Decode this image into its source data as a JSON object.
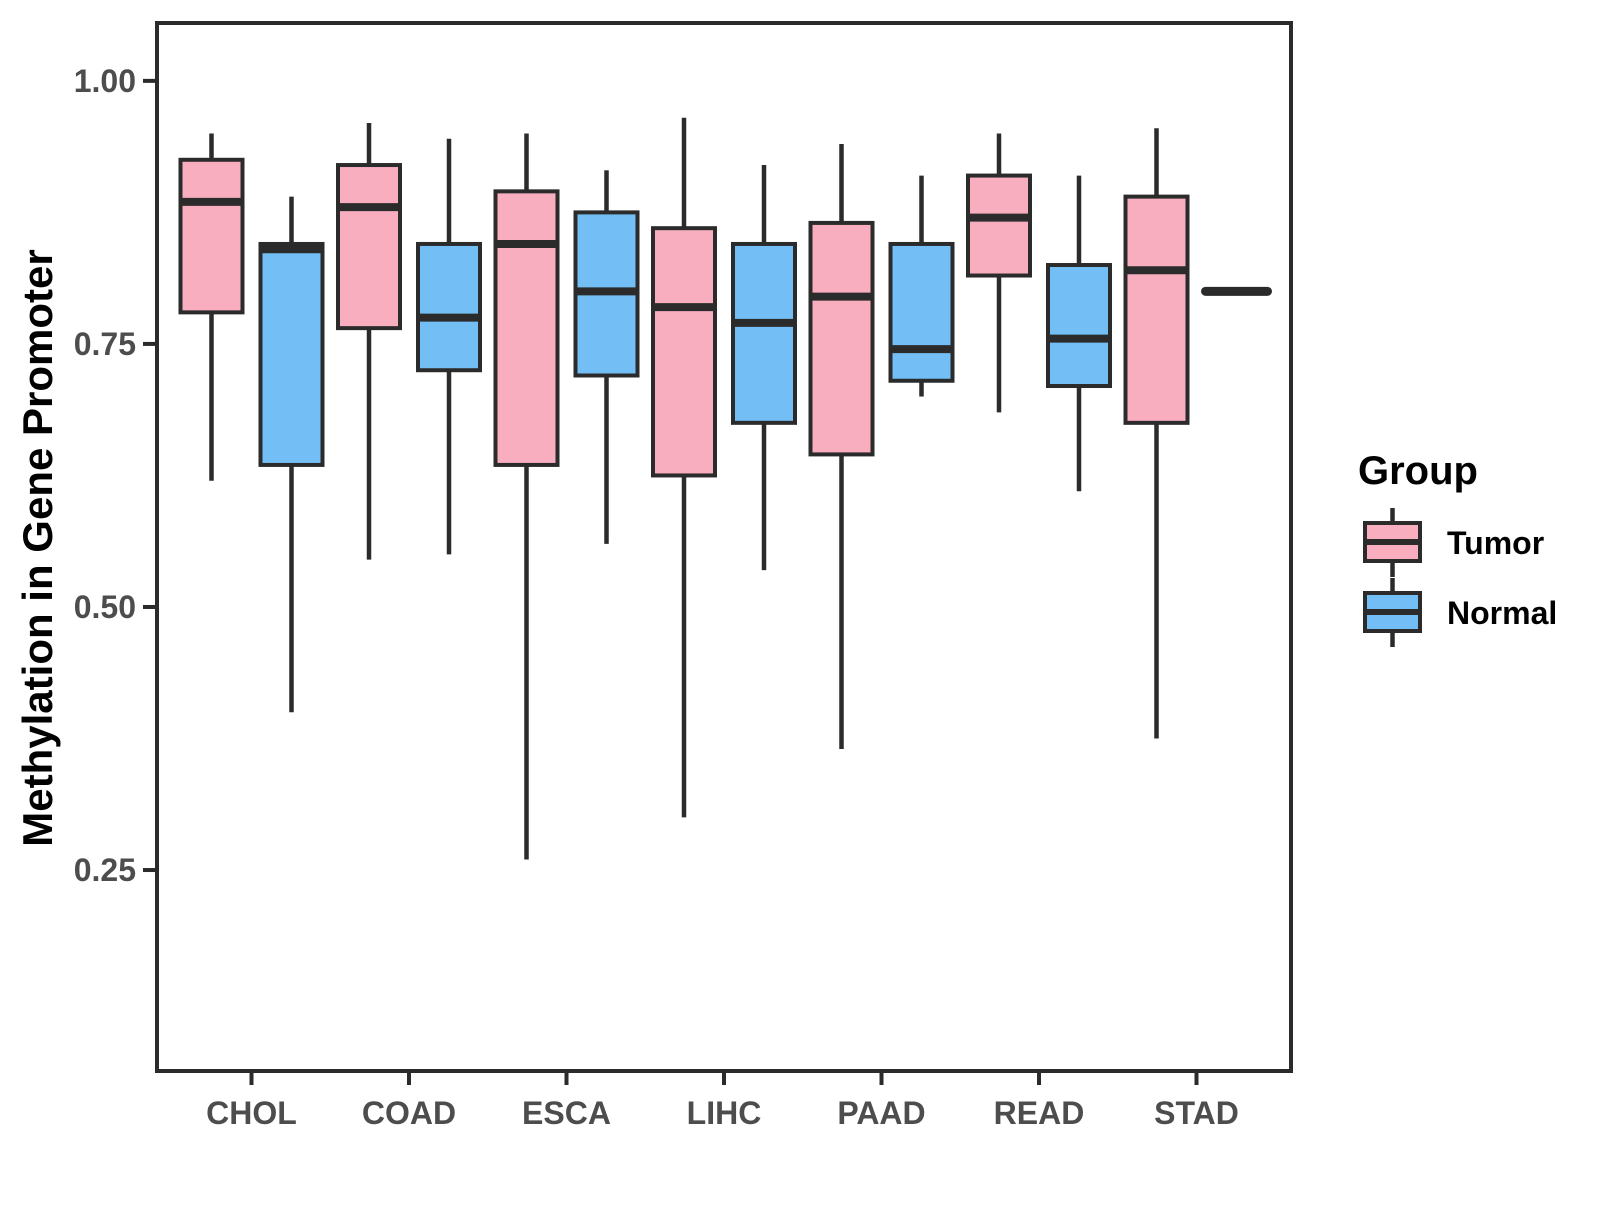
{
  "figure": {
    "background": "#ffffff",
    "line_color": "#2b2b2b",
    "tick_text_color": "#4d4d4d"
  },
  "chart_data": {
    "type": "boxplot",
    "title": "",
    "xlabel": "",
    "ylabel": "Methylation in Gene Promoter",
    "categories": [
      "CHOL",
      "COAD",
      "ESCA",
      "LIHC",
      "PAAD",
      "READ",
      "STAD"
    ],
    "y_ticks": [
      0.25,
      0.5,
      0.75,
      1.0
    ],
    "y_tick_labels": [
      "0.25",
      "0.50",
      "0.75",
      "1.00"
    ],
    "ylim": [
      0.059,
      1.055
    ],
    "grid": "off",
    "legend": {
      "title": "Group",
      "position": "right"
    },
    "series": [
      {
        "name": "Tumor",
        "color": "#F9AEC0",
        "boxes": [
          {
            "category": "CHOL",
            "min": 0.62,
            "q1": 0.78,
            "median": 0.885,
            "q3": 0.925,
            "max": 0.95
          },
          {
            "category": "COAD",
            "min": 0.545,
            "q1": 0.765,
            "median": 0.88,
            "q3": 0.92,
            "max": 0.96
          },
          {
            "category": "ESCA",
            "min": 0.26,
            "q1": 0.635,
            "median": 0.845,
            "q3": 0.895,
            "max": 0.95
          },
          {
            "category": "LIHC",
            "min": 0.3,
            "q1": 0.625,
            "median": 0.785,
            "q3": 0.86,
            "max": 0.965
          },
          {
            "category": "PAAD",
            "min": 0.365,
            "q1": 0.645,
            "median": 0.795,
            "q3": 0.865,
            "max": 0.94
          },
          {
            "category": "READ",
            "min": 0.685,
            "q1": 0.815,
            "median": 0.87,
            "q3": 0.91,
            "max": 0.95
          },
          {
            "category": "STAD",
            "min": 0.375,
            "q1": 0.675,
            "median": 0.82,
            "q3": 0.89,
            "max": 0.955
          }
        ]
      },
      {
        "name": "Normal",
        "color": "#73BFF5",
        "boxes": [
          {
            "category": "CHOL",
            "min": 0.4,
            "q1": 0.635,
            "median": 0.84,
            "q3": 0.845,
            "max": 0.89
          },
          {
            "category": "COAD",
            "min": 0.55,
            "q1": 0.725,
            "median": 0.775,
            "q3": 0.845,
            "max": 0.945
          },
          {
            "category": "ESCA",
            "min": 0.56,
            "q1": 0.72,
            "median": 0.8,
            "q3": 0.875,
            "max": 0.915
          },
          {
            "category": "LIHC",
            "min": 0.535,
            "q1": 0.675,
            "median": 0.77,
            "q3": 0.845,
            "max": 0.92
          },
          {
            "category": "PAAD",
            "min": 0.7,
            "q1": 0.715,
            "median": 0.745,
            "q3": 0.845,
            "max": 0.91
          },
          {
            "category": "READ",
            "min": 0.61,
            "q1": 0.71,
            "median": 0.755,
            "q3": 0.825,
            "max": 0.91
          },
          {
            "category": "STAD",
            "min": 0.8,
            "q1": 0.8,
            "median": 0.8,
            "q3": 0.8,
            "max": 0.8
          }
        ]
      }
    ]
  }
}
